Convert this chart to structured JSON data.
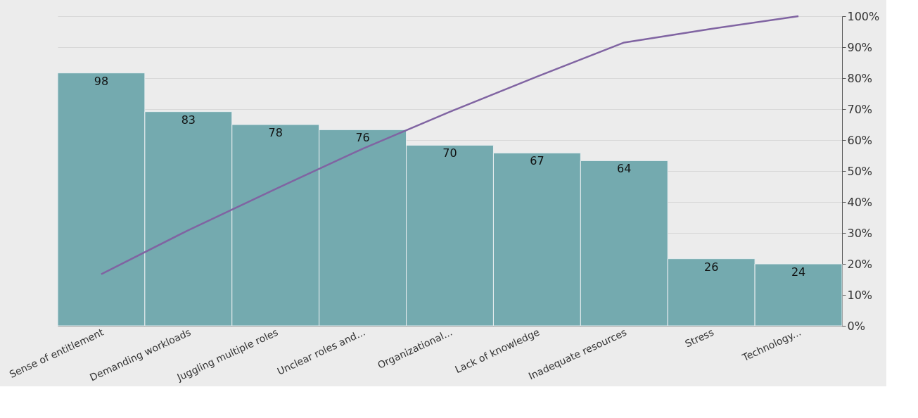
{
  "chart_data": {
    "type": "bar",
    "categories": [
      "Sense of entitlement",
      "Demanding workloads",
      "Juggling multiple roles",
      "Unclear roles and...",
      "Organizational...",
      "Lack of knowledge",
      "Inadequate resources",
      "Stress",
      "Technology..."
    ],
    "series": [
      {
        "color": "#74aaaf",
        "values": [
          98,
          83,
          78,
          76,
          70,
          67,
          64,
          26,
          24
        ],
        "value_labels": [
          "98",
          "83",
          "78",
          "76",
          "70",
          "67",
          "64",
          "26",
          "24"
        ]
      },
      {
        "type": "line",
        "axis": "y2",
        "color": "#8064a2",
        "values": [
          16.7,
          30.9,
          44.2,
          57.2,
          69.1,
          80.5,
          91.5,
          95.9,
          100
        ]
      }
    ],
    "ylim": [
      0,
      120
    ],
    "y2lim": [
      0,
      100
    ],
    "y2ticks": [
      {
        "value": 0,
        "label": "0%"
      },
      {
        "value": 10,
        "label": "10%"
      },
      {
        "value": 20,
        "label": "20%"
      },
      {
        "value": 30,
        "label": "30%"
      },
      {
        "value": 40,
        "label": "40%"
      },
      {
        "value": 50,
        "label": "50%"
      },
      {
        "value": 60,
        "label": "60%"
      },
      {
        "value": 70,
        "label": "70%"
      },
      {
        "value": 80,
        "label": "80%"
      },
      {
        "value": 90,
        "label": "90%"
      },
      {
        "value": 100,
        "label": "100%"
      }
    ],
    "grid": "y",
    "marker": "none",
    "line_style": "solid"
  }
}
